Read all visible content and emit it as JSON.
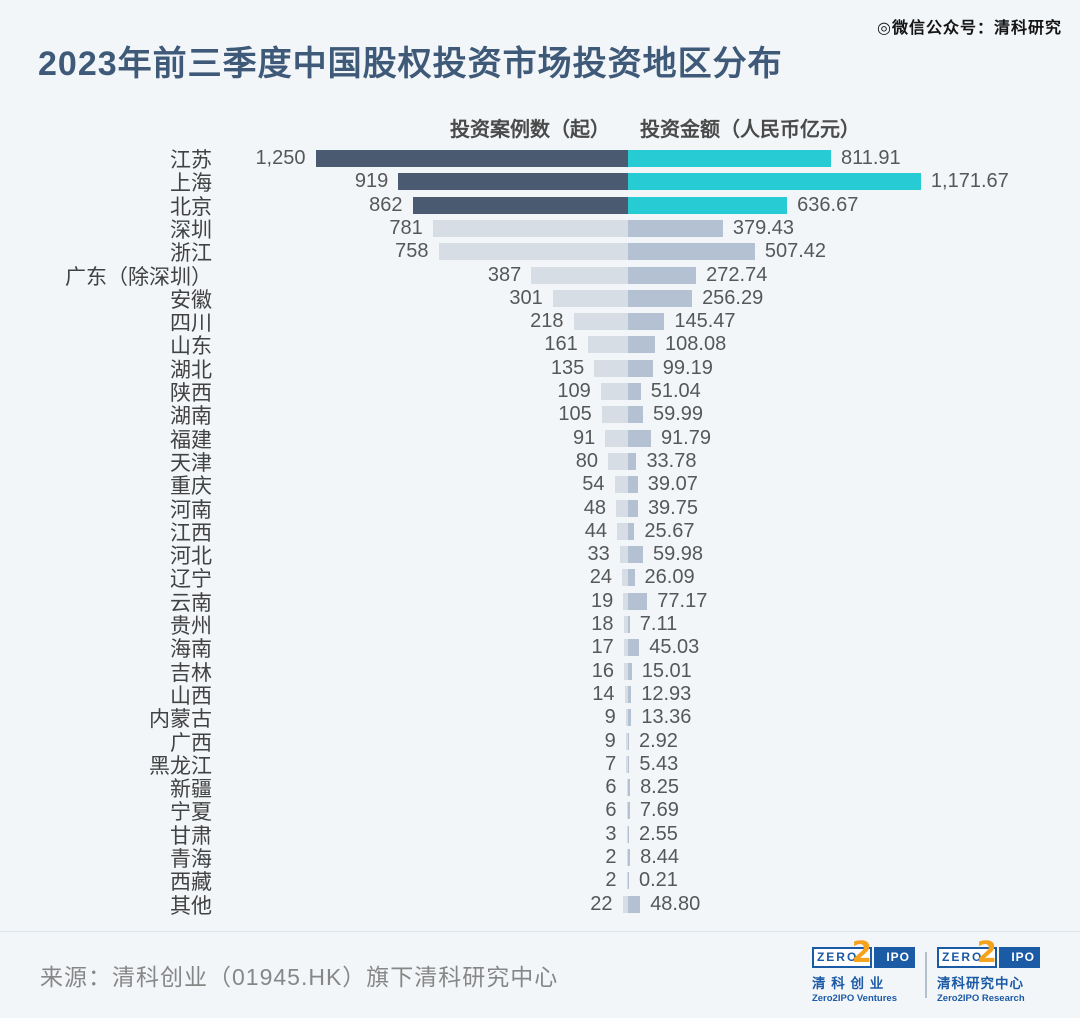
{
  "watermark": "◎微信公众号：清科研究",
  "title": "2023年前三季度中国股权投资市场投资地区分布",
  "chart_data": {
    "type": "bar",
    "subtype": "bidirectional-tornado",
    "title": "2023年前三季度中国股权投资市场投资地区分布",
    "left_header": "投资案例数（起）",
    "right_header": "投资金额（人民币亿元）",
    "categories": [
      "江苏",
      "上海",
      "北京",
      "深圳",
      "浙江",
      "广东（除深圳）",
      "安徽",
      "四川",
      "山东",
      "湖北",
      "陕西",
      "湖南",
      "福建",
      "天津",
      "重庆",
      "河南",
      "江西",
      "河北",
      "辽宁",
      "云南",
      "贵州",
      "海南",
      "吉林",
      "山西",
      "内蒙古",
      "广西",
      "黑龙江",
      "新疆",
      "宁夏",
      "甘肃",
      "青海",
      "西藏",
      "其他"
    ],
    "series": [
      {
        "name": "投资案例数（起）",
        "direction": "left",
        "values": [
          1250,
          919,
          862,
          781,
          758,
          387,
          301,
          218,
          161,
          135,
          109,
          105,
          91,
          80,
          54,
          48,
          44,
          33,
          24,
          19,
          18,
          17,
          16,
          14,
          9,
          9,
          7,
          6,
          6,
          3,
          2,
          2,
          22
        ],
        "labels": [
          "1,250",
          "919",
          "862",
          "781",
          "758",
          "387",
          "301",
          "218",
          "161",
          "135",
          "109",
          "105",
          "91",
          "80",
          "54",
          "48",
          "44",
          "33",
          "24",
          "19",
          "18",
          "17",
          "16",
          "14",
          "9",
          "9",
          "7",
          "6",
          "6",
          "3",
          "2",
          "2",
          "22"
        ]
      },
      {
        "name": "投资金额（人民币亿元）",
        "direction": "right",
        "values": [
          811.91,
          1171.67,
          636.67,
          379.43,
          507.42,
          272.74,
          256.29,
          145.47,
          108.08,
          99.19,
          51.04,
          59.99,
          91.79,
          33.78,
          39.07,
          39.75,
          25.67,
          59.98,
          26.09,
          77.17,
          7.11,
          45.03,
          15.01,
          12.93,
          13.36,
          2.92,
          5.43,
          8.25,
          7.69,
          2.55,
          8.44,
          0.21,
          48.8
        ],
        "labels": [
          "811.91",
          "1,171.67",
          "636.67",
          "379.43",
          "507.42",
          "272.74",
          "256.29",
          "145.47",
          "108.08",
          "99.19",
          "51.04",
          "59.99",
          "91.79",
          "33.78",
          "39.07",
          "39.75",
          "25.67",
          "59.98",
          "26.09",
          "77.17",
          "7.11",
          "45.03",
          "15.01",
          "12.93",
          "13.36",
          "2.92",
          "5.43",
          "8.25",
          "7.69",
          "2.55",
          "8.44",
          "0.21",
          "48.80"
        ]
      }
    ],
    "highlight_rows": [
      0,
      1,
      2
    ],
    "left_range": [
      0,
      1250
    ],
    "right_range": [
      0,
      1171.67
    ],
    "legend_position": "top",
    "grid": false,
    "colors": {
      "highlight_left": "#4a5b71",
      "highlight_right": "#26cbd3",
      "normal_left": "#d7dde5",
      "normal_right": "#b4c1d3",
      "background": "#f3f6f9",
      "title": "#3e5a78"
    }
  },
  "footer": {
    "source": "来源：清科创业（01945.HK）旗下清科研究中心",
    "logos": [
      {
        "zero": "ZERO",
        "two": "2",
        "ipo": "IPO",
        "cn": "清 科 创 业",
        "en": "Zero2IPO Ventures"
      },
      {
        "zero": "ZERO",
        "two": "2",
        "ipo": "IPO",
        "cn": "清科研究中心",
        "en": "Zero2IPO Research"
      }
    ]
  }
}
